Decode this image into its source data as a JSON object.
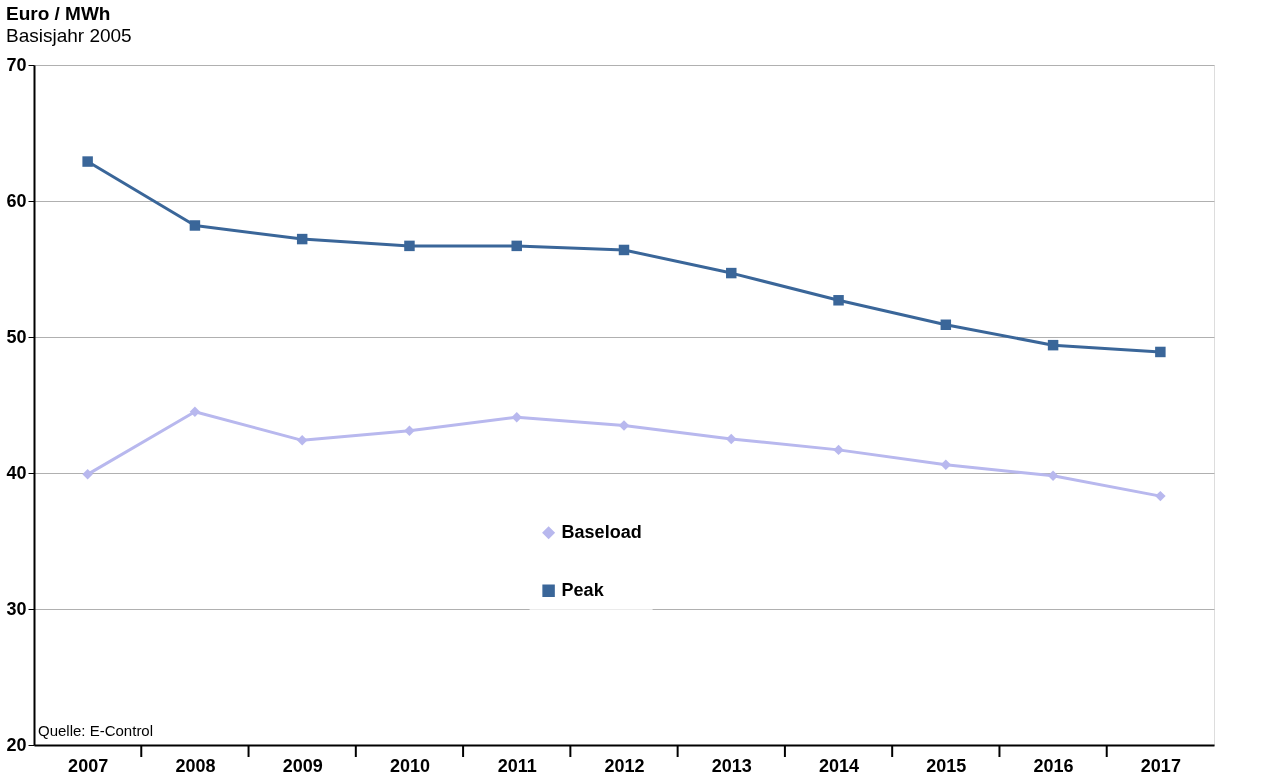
{
  "chart_data": {
    "type": "line",
    "title": "Euro / MWh",
    "subtitle": "Basisjahr 2005",
    "categories": [
      "2007",
      "2008",
      "2009",
      "2010",
      "2011",
      "2012",
      "2013",
      "2014",
      "2015",
      "2016",
      "2017"
    ],
    "series": [
      {
        "name": "Baseload",
        "color": "#b8b8ee",
        "marker": "diamond",
        "values": [
          39.9,
          44.5,
          42.4,
          43.1,
          44.1,
          43.5,
          42.5,
          41.7,
          40.6,
          39.8,
          38.3
        ]
      },
      {
        "name": "Peak",
        "color": "#3a6699",
        "marker": "square",
        "values": [
          62.9,
          58.2,
          57.2,
          56.7,
          56.7,
          56.4,
          54.7,
          52.7,
          50.9,
          49.4,
          48.9
        ]
      }
    ],
    "ylim": [
      20,
      70
    ],
    "yticks": [
      20,
      30,
      40,
      50,
      60,
      70
    ],
    "grid": "y",
    "legend": "bottom",
    "annotations": [
      "Quelle: E-Control"
    ]
  }
}
